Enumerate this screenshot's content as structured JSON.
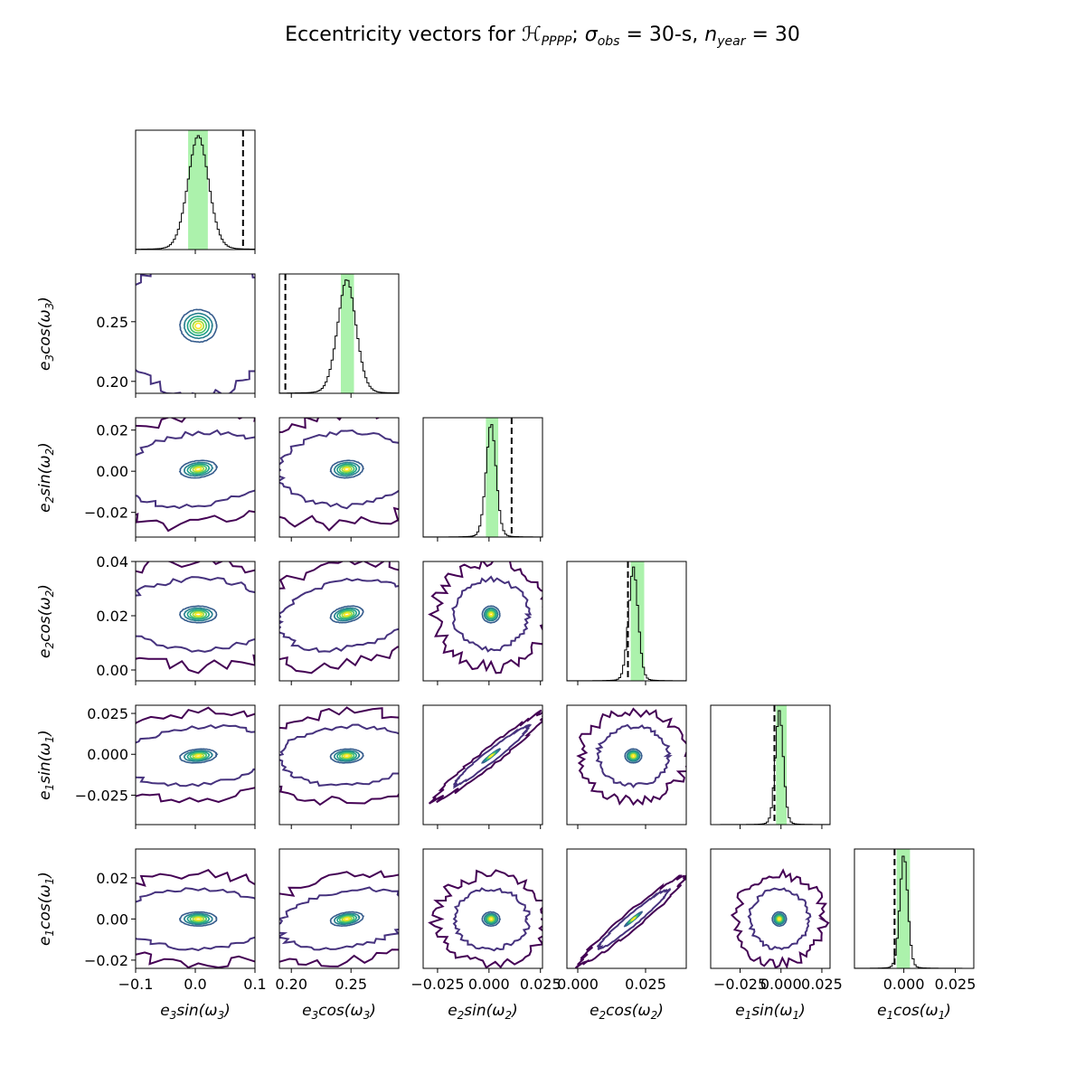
{
  "chart_data": {
    "type": "corner",
    "title": {
      "prefix": "Eccentricity vectors for ",
      "symbol": "ℋ",
      "symbol_sub": "PPPP",
      "sep1": "; ",
      "sigma": "σ",
      "sigma_sub": "obs",
      "sigma_value": " = 30-s, ",
      "n": "n",
      "n_sub": "year",
      "n_value": " = 30"
    },
    "parameters": [
      {
        "label_main": "e",
        "label_sub1": "3",
        "label_fn": "sin(ω",
        "label_sub2": "3",
        "label_close": ")",
        "range": [
          -0.1,
          0.1
        ],
        "ticks": [
          -0.1,
          0.0,
          0.1
        ],
        "tick_labels": [
          "−0.1",
          "0.0",
          "0.1"
        ],
        "y_ticks": [],
        "y_tick_labels": [],
        "truth": 0.08,
        "posterior_mean": 0.005,
        "posterior_sd": 0.018,
        "ci": [
          -0.012,
          0.021
        ]
      },
      {
        "label_main": "e",
        "label_sub1": "3",
        "label_fn": "cos(ω",
        "label_sub2": "3",
        "label_close": ")",
        "range": [
          0.19,
          0.29
        ],
        "ticks": [
          0.2,
          0.25
        ],
        "tick_labels": [
          "0.20",
          "0.25"
        ],
        "y_ticks": [
          0.2,
          0.25
        ],
        "y_tick_labels": [
          "0.20",
          "0.25"
        ],
        "truth": 0.195,
        "posterior_mean": 0.2465,
        "posterior_sd": 0.008,
        "ci": [
          0.2415,
          0.2525
        ]
      },
      {
        "label_main": "e",
        "label_sub1": "2",
        "label_fn": "sin(ω",
        "label_sub2": "2",
        "label_close": ")",
        "range": [
          -0.032,
          0.026
        ],
        "ticks": [
          -0.025,
          0.0,
          0.025
        ],
        "tick_labels": [
          "−0.025",
          "0.000",
          "0.025"
        ],
        "y_ticks": [
          -0.02,
          0.0,
          0.02
        ],
        "y_tick_labels": [
          "−0.02",
          "0.00",
          "0.02"
        ],
        "truth": 0.011,
        "posterior_mean": 0.001,
        "posterior_sd": 0.0025,
        "ci": [
          -0.0015,
          0.0045
        ]
      },
      {
        "label_main": "e",
        "label_sub1": "2",
        "label_fn": "cos(ω",
        "label_sub2": "2",
        "label_close": ")",
        "range": [
          -0.004,
          0.04
        ],
        "ticks": [
          0.0,
          0.025
        ],
        "tick_labels": [
          "0.000",
          "0.025"
        ],
        "y_ticks": [
          0.0,
          0.02,
          0.04
        ],
        "y_tick_labels": [
          "0.00",
          "0.02",
          "0.04"
        ],
        "truth": 0.0185,
        "posterior_mean": 0.0205,
        "posterior_sd": 0.0018,
        "ci": [
          0.0195,
          0.0245
        ]
      },
      {
        "label_main": "e",
        "label_sub1": "1",
        "label_fn": "sin(ω",
        "label_sub2": "1",
        "label_close": ")",
        "range": [
          -0.043,
          0.03
        ],
        "ticks": [
          -0.025,
          0.0,
          0.025
        ],
        "tick_labels": [
          "−0.025",
          "0.000",
          "0.025"
        ],
        "y_ticks": [
          -0.025,
          0.0,
          0.025
        ],
        "y_tick_labels": [
          "−0.025",
          "0.000",
          "0.025"
        ],
        "truth": -0.004,
        "posterior_mean": -0.001,
        "posterior_sd": 0.0025,
        "ci": [
          -0.003,
          0.0035
        ]
      },
      {
        "label_main": "e",
        "label_sub1": "1",
        "label_fn": "cos(ω",
        "label_sub2": "1",
        "label_close": ")",
        "range": [
          -0.024,
          0.034
        ],
        "ticks": [
          -0.025,
          0.0,
          0.025
        ],
        "tick_labels": [
          "−0.025",
          "0.000",
          "0.025"
        ],
        "y_ticks": [
          -0.02,
          0.0,
          0.02
        ],
        "y_tick_labels": [
          "−0.02",
          "0.00",
          "0.02"
        ],
        "truth": -0.0045,
        "posterior_mean": 0.0,
        "posterior_sd": 0.002,
        "ci": [
          -0.0035,
          0.003
        ]
      }
    ],
    "pair_correlations": [
      {
        "i": 1,
        "j": 0,
        "rho": 0.0
      },
      {
        "i": 2,
        "j": 0,
        "rho": 0.2
      },
      {
        "i": 2,
        "j": 1,
        "rho": 0.1
      },
      {
        "i": 3,
        "j": 0,
        "rho": 0.0
      },
      {
        "i": 3,
        "j": 1,
        "rho": 0.3
      },
      {
        "i": 3,
        "j": 2,
        "rho": 0.0
      },
      {
        "i": 4,
        "j": 0,
        "rho": 0.2
      },
      {
        "i": 4,
        "j": 1,
        "rho": 0.1
      },
      {
        "i": 4,
        "j": 2,
        "rho": 0.97
      },
      {
        "i": 4,
        "j": 3,
        "rho": 0.0
      },
      {
        "i": 5,
        "j": 0,
        "rho": 0.0
      },
      {
        "i": 5,
        "j": 1,
        "rho": 0.3
      },
      {
        "i": 5,
        "j": 2,
        "rho": 0.0
      },
      {
        "i": 5,
        "j": 3,
        "rho": 0.97
      },
      {
        "i": 5,
        "j": 4,
        "rho": 0.0
      }
    ],
    "colors": {
      "histogram": "#000000",
      "truth_line": "#000000",
      "credible_band": "#90ee90",
      "contour_levels": [
        "#440154",
        "#46327e",
        "#365c8d",
        "#277f8e",
        "#1fa187",
        "#4ac16d",
        "#a0da39",
        "#fde725"
      ]
    },
    "grid": false,
    "legend": "none"
  }
}
